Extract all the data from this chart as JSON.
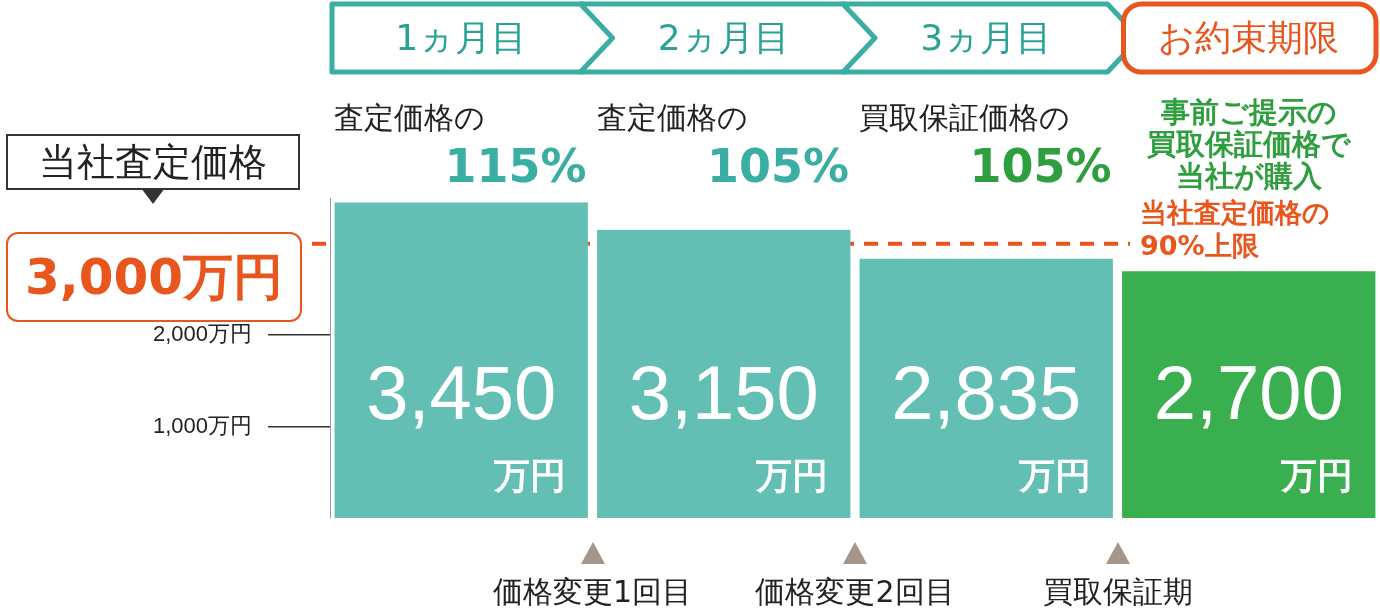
{
  "chart_data": {
    "type": "bar",
    "categories": [
      "1ヵ月目",
      "2ヵ月目",
      "3ヵ月目",
      "お約束期限"
    ],
    "values": [
      3450,
      3150,
      2835,
      2700
    ],
    "colors": [
      "#63bfb4",
      "#63bfb4",
      "#63bfb4",
      "#3aaf4f"
    ],
    "value_labels": [
      "3,450万円",
      "3,150万円",
      "2,835万円",
      "2,700万円"
    ],
    "ylim": [
      0,
      3500
    ],
    "yticks": [
      {
        "value": 1000,
        "label": "1,000万円"
      },
      {
        "value": 2000,
        "label": "2,000万円"
      }
    ],
    "grid": false,
    "legend": false,
    "ref_lines": [
      {
        "axis": "y",
        "value": 3000,
        "label": "当社査定価格の\n90%上限",
        "color": "#e8561e",
        "line_style": "dashed"
      }
    ],
    "annotations": [
      "当社査定価格",
      "3,000万円",
      "査定価格の115%",
      "査定価格の105%",
      "買取保証価格の105%",
      "事前ご提示の",
      "買取保証価格で",
      "当社が購入",
      "価格変更1回目",
      "価格変更2回目",
      "買取保証期"
    ]
  }
}
